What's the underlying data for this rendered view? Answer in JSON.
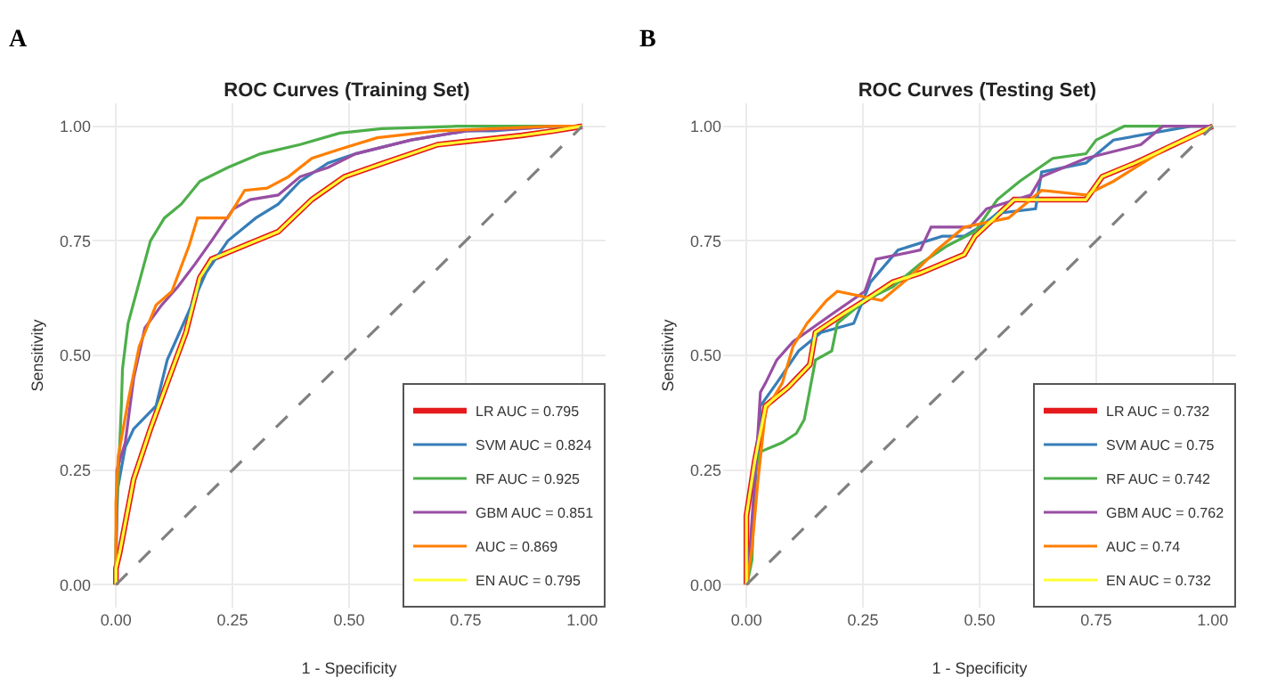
{
  "chart_data": [
    {
      "type": "line",
      "title": "ROC Curves (Training Set)",
      "xlabel": "1 - Specificity",
      "ylabel": "Sensitivity",
      "annotations": [
        "A"
      ],
      "xlim": [
        -0.05,
        1.05
      ],
      "ylim": [
        -0.05,
        1.05
      ],
      "xticks": [
        {
          "value": 0,
          "label": "0.00"
        },
        {
          "value": 0.25,
          "label": "0.25"
        },
        {
          "value": 0.5,
          "label": "0.50"
        },
        {
          "value": 0.75,
          "label": "0.75"
        },
        {
          "value": 1,
          "label": "1.00"
        }
      ],
      "yticks": [
        {
          "value": 0,
          "label": "0.00"
        },
        {
          "value": 0.25,
          "label": "0.25"
        },
        {
          "value": 0.5,
          "label": "0.50"
        },
        {
          "value": 0.75,
          "label": "0.75"
        },
        {
          "value": 1,
          "label": "1.00"
        }
      ],
      "grid": true,
      "legend": "bottom right",
      "marker": "none",
      "series": [
        {
          "name": "LR AUC = 0.795",
          "color": "#e41a1c",
          "x": [
            0,
            0,
            0.008,
            0.038,
            0.074,
            0.11,
            0.15,
            0.18,
            0.205,
            0.276,
            0.348,
            0.42,
            0.49,
            0.574,
            0.69,
            0.87,
            0.94,
            1
          ],
          "values": [
            0,
            0.035,
            0.07,
            0.23,
            0.34,
            0.44,
            0.55,
            0.67,
            0.71,
            0.74,
            0.77,
            0.84,
            0.89,
            0.92,
            0.96,
            0.98,
            0.99,
            1
          ]
        },
        {
          "name": "SVM AUC = 0.824",
          "color": "#377eb8",
          "x": [
            0,
            0.002,
            0.02,
            0.038,
            0.086,
            0.11,
            0.145,
            0.193,
            0.24,
            0.3,
            0.348,
            0.395,
            0.455,
            0.514,
            0.633,
            0.752,
            0.81,
            0.94,
            1
          ],
          "values": [
            0,
            0.2,
            0.3,
            0.34,
            0.39,
            0.49,
            0.57,
            0.68,
            0.75,
            0.8,
            0.83,
            0.88,
            0.92,
            0.94,
            0.97,
            0.99,
            0.99,
            1,
            1
          ]
        },
        {
          "name": "RF AUC = 0.925",
          "color": "#4daf4a",
          "x": [
            0,
            0,
            0.005,
            0.012,
            0.014,
            0.026,
            0.05,
            0.074,
            0.104,
            0.14,
            0.18,
            0.24,
            0.31,
            0.395,
            0.48,
            0.57,
            0.73,
            1
          ],
          "values": [
            0,
            0.1,
            0.23,
            0.4,
            0.47,
            0.57,
            0.66,
            0.75,
            0.8,
            0.83,
            0.88,
            0.91,
            0.94,
            0.96,
            0.985,
            0.995,
            1,
            1
          ]
        },
        {
          "name": "GBM AUC = 0.851",
          "color": "#984ea3",
          "x": [
            0,
            0.002,
            0.02,
            0.038,
            0.062,
            0.098,
            0.133,
            0.17,
            0.205,
            0.252,
            0.288,
            0.348,
            0.395,
            0.455,
            0.514,
            0.633,
            0.752,
            0.87,
            0.94,
            1
          ],
          "values": [
            0,
            0.25,
            0.31,
            0.45,
            0.56,
            0.61,
            0.65,
            0.7,
            0.75,
            0.82,
            0.84,
            0.85,
            0.89,
            0.91,
            0.94,
            0.97,
            0.99,
            0.995,
            1,
            1
          ]
        },
        {
          "name": "AUC = 0.869",
          "color": "#ff7f00",
          "x": [
            0,
            0,
            0.005,
            0.026,
            0.05,
            0.086,
            0.12,
            0.157,
            0.175,
            0.24,
            0.276,
            0.324,
            0.37,
            0.42,
            0.48,
            0.56,
            0.69,
            0.94,
            1
          ],
          "values": [
            0,
            0.18,
            0.28,
            0.4,
            0.52,
            0.61,
            0.64,
            0.74,
            0.8,
            0.8,
            0.86,
            0.865,
            0.89,
            0.93,
            0.95,
            0.975,
            0.99,
            1,
            1
          ]
        },
        {
          "name": "EN AUC = 0.795",
          "color": "#ffff33",
          "x": [
            0,
            0,
            0.008,
            0.038,
            0.074,
            0.11,
            0.15,
            0.18,
            0.205,
            0.276,
            0.348,
            0.42,
            0.49,
            0.574,
            0.69,
            0.87,
            0.94,
            1
          ],
          "values": [
            0,
            0.035,
            0.07,
            0.23,
            0.34,
            0.44,
            0.55,
            0.67,
            0.71,
            0.74,
            0.77,
            0.84,
            0.89,
            0.92,
            0.96,
            0.98,
            0.99,
            1
          ]
        },
        {
          "color": "#808080",
          "line_style": "dashed",
          "x": [
            0,
            1
          ],
          "values": [
            0,
            1
          ]
        }
      ]
    },
    {
      "type": "line",
      "title": "ROC Curves (Testing Set)",
      "xlabel": "1 - Specificity",
      "ylabel": "Sensitivity",
      "annotations": [
        "B"
      ],
      "xlim": [
        -0.05,
        1.05
      ],
      "ylim": [
        -0.05,
        1.05
      ],
      "xticks": [
        {
          "value": 0,
          "label": "0.00"
        },
        {
          "value": 0.25,
          "label": "0.25"
        },
        {
          "value": 0.5,
          "label": "0.50"
        },
        {
          "value": 0.75,
          "label": "0.75"
        },
        {
          "value": 1,
          "label": "1.00"
        }
      ],
      "yticks": [
        {
          "value": 0,
          "label": "0.00"
        },
        {
          "value": 0.25,
          "label": "0.25"
        },
        {
          "value": 0.5,
          "label": "0.50"
        },
        {
          "value": 0.75,
          "label": "0.75"
        },
        {
          "value": 1,
          "label": "1.00"
        }
      ],
      "grid": true,
      "legend": "bottom right",
      "marker": "none",
      "series": [
        {
          "name": "LR AUC = 0.732",
          "color": "#e41a1c",
          "x": [
            0,
            0,
            0.018,
            0.041,
            0.089,
            0.136,
            0.148,
            0.207,
            0.254,
            0.314,
            0.373,
            0.467,
            0.49,
            0.574,
            0.728,
            0.763,
            0.834,
            0.917,
            1
          ],
          "values": [
            0,
            0.15,
            0.27,
            0.39,
            0.43,
            0.48,
            0.55,
            0.59,
            0.62,
            0.66,
            0.68,
            0.72,
            0.76,
            0.84,
            0.84,
            0.89,
            0.92,
            0.96,
            1
          ]
        },
        {
          "name": "SVM AUC = 0.75",
          "color": "#377eb8",
          "x": [
            0,
            0.012,
            0.03,
            0.065,
            0.112,
            0.16,
            0.23,
            0.266,
            0.325,
            0.42,
            0.467,
            0.5,
            0.538,
            0.62,
            0.633,
            0.728,
            0.787,
            0.953,
            1
          ],
          "values": [
            0,
            0.115,
            0.39,
            0.44,
            0.51,
            0.55,
            0.57,
            0.66,
            0.73,
            0.76,
            0.76,
            0.78,
            0.81,
            0.82,
            0.9,
            0.92,
            0.97,
            1,
            1
          ]
        },
        {
          "name": "RF AUC = 0.742",
          "color": "#4daf4a",
          "x": [
            0,
            0.006,
            0.012,
            0.018,
            0.03,
            0.077,
            0.107,
            0.124,
            0.148,
            0.183,
            0.195,
            0.254,
            0.314,
            0.373,
            0.432,
            0.49,
            0.538,
            0.586,
            0.657,
            0.728,
            0.75,
            0.81,
            1
          ],
          "values": [
            0,
            0.024,
            0.055,
            0.24,
            0.29,
            0.31,
            0.33,
            0.36,
            0.49,
            0.51,
            0.57,
            0.62,
            0.65,
            0.7,
            0.74,
            0.77,
            0.84,
            0.88,
            0.93,
            0.94,
            0.97,
            1,
            1
          ]
        },
        {
          "name": "GBM AUC = 0.762",
          "color": "#984ea3",
          "x": [
            0,
            0.006,
            0.024,
            0.03,
            0.041,
            0.065,
            0.1,
            0.183,
            0.254,
            0.278,
            0.373,
            0.396,
            0.48,
            0.515,
            0.61,
            0.633,
            0.728,
            0.846,
            0.893,
            1
          ],
          "values": [
            0,
            0.055,
            0.32,
            0.42,
            0.44,
            0.49,
            0.53,
            0.59,
            0.64,
            0.71,
            0.73,
            0.78,
            0.78,
            0.82,
            0.85,
            0.89,
            0.93,
            0.96,
            1,
            1
          ]
        },
        {
          "name": "AUC = 0.74",
          "color": "#ff7f00",
          "x": [
            0,
            0.012,
            0.024,
            0.041,
            0.077,
            0.1,
            0.13,
            0.172,
            0.195,
            0.29,
            0.349,
            0.408,
            0.467,
            0.562,
            0.633,
            0.728,
            0.787,
            0.905,
            0.964,
            1
          ],
          "values": [
            0,
            0.08,
            0.22,
            0.38,
            0.44,
            0.52,
            0.57,
            0.62,
            0.64,
            0.62,
            0.67,
            0.73,
            0.78,
            0.8,
            0.86,
            0.85,
            0.88,
            0.955,
            0.98,
            1
          ]
        },
        {
          "name": "EN AUC = 0.732",
          "color": "#ffff33",
          "x": [
            0,
            0,
            0.018,
            0.041,
            0.089,
            0.136,
            0.148,
            0.207,
            0.254,
            0.314,
            0.373,
            0.467,
            0.49,
            0.574,
            0.728,
            0.763,
            0.834,
            0.917,
            1
          ],
          "values": [
            0,
            0.15,
            0.27,
            0.39,
            0.43,
            0.48,
            0.55,
            0.59,
            0.62,
            0.66,
            0.68,
            0.72,
            0.76,
            0.84,
            0.84,
            0.89,
            0.92,
            0.96,
            1
          ]
        },
        {
          "color": "#808080",
          "line_style": "dashed",
          "x": [
            0,
            1
          ],
          "values": [
            0,
            1
          ]
        }
      ]
    }
  ]
}
